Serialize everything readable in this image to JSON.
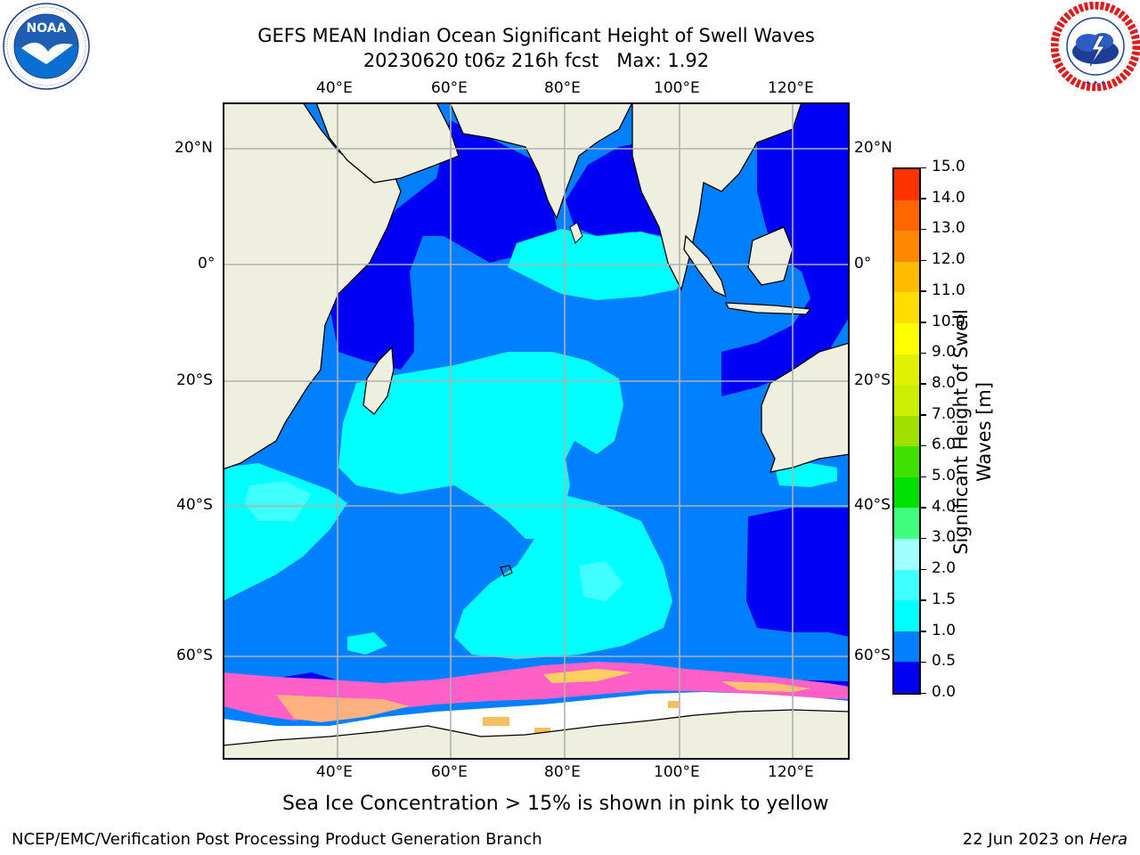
{
  "header": {
    "title_line1": "GEFS MEAN Indian Ocean Significant Height of Swell Waves",
    "title_line2": "20230620 t06z 216h fcst   Max: 1.92"
  },
  "logos": {
    "left": {
      "name": "NOAA",
      "ring_text": "NATIONAL OCEANIC AND ATMOSPHERIC ADMINISTRATION · U.S. DEPARTMENT OF COMMERCE"
    },
    "right": {
      "name": "NATIONAL WEATHER SERVICE"
    }
  },
  "map": {
    "lon_ticks": [
      "40°E",
      "60°E",
      "80°E",
      "100°E",
      "120°E"
    ],
    "lat_ticks": [
      "20°N",
      "0°",
      "20°S",
      "40°S",
      "60°S"
    ],
    "colors": {
      "land": "#efefdf",
      "coast": "#000000",
      "grid": "#b0b0b0",
      "ice": "#ffffff"
    }
  },
  "colorbar": {
    "label_line1": "Significant Height of Swell",
    "label_line2": "Waves [m]",
    "ticks": [
      "0.0",
      "0.5",
      "1.0",
      "1.5",
      "2.0",
      "3.0",
      "4.0",
      "5.0",
      "6.0",
      "7.0",
      "8.0",
      "9.0",
      "10.0",
      "11.0",
      "12.0",
      "13.0",
      "14.0",
      "15.0"
    ],
    "colors": [
      "#0000f5",
      "#0080ff",
      "#00ffff",
      "#40ffff",
      "#a0ffff",
      "#40ff80",
      "#00e000",
      "#40e000",
      "#a0e000",
      "#ccee00",
      "#e0f000",
      "#ffff00",
      "#ffdd00",
      "#ffbb00",
      "#ff8800",
      "#ff6600",
      "#ff3300",
      "#ff0000"
    ]
  },
  "caption": "Sea Ice Concentration > 15% is shown in pink to yellow",
  "footer": {
    "left": "NCEP/EMC/Verification Post Processing Product Generation Branch",
    "right_prefix": "22 Jun 2023 on ",
    "right_host": "Hera"
  }
}
